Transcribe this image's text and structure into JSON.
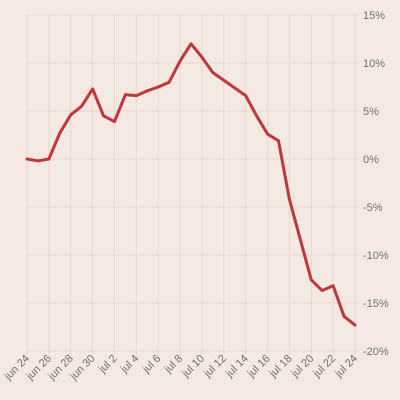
{
  "chart_data": {
    "type": "line",
    "title": "",
    "xlabel": "",
    "ylabel": "",
    "x": [
      "jun 24",
      "jun 25",
      "jun 26",
      "jun 27",
      "jun 28",
      "jun 29",
      "jun 30",
      "jul 1",
      "jul 2",
      "jul 3",
      "jul 4",
      "jul 5",
      "jul 6",
      "jul 7",
      "jul 8",
      "jul 9",
      "jul 10",
      "jul 11",
      "jul 12",
      "jul 13",
      "jul 14",
      "jul 15",
      "jul 16",
      "jul 17",
      "jul 18",
      "jul 19",
      "jul 20",
      "jul 21",
      "jul 22",
      "jul 23",
      "jul 24"
    ],
    "x_tick_labels": [
      "jun 24",
      "jun 26",
      "jun 28",
      "jun 30",
      "jul 2",
      "jul 4",
      "jul 6",
      "jul 8",
      "jul 10",
      "jul 12",
      "jul 14",
      "jul 16",
      "jul 18",
      "jul 20",
      "jul 22",
      "jul 24"
    ],
    "series": [
      {
        "color": "#c0373a",
        "values": [
          0.0,
          -0.2,
          0.0,
          2.7,
          4.6,
          5.5,
          7.3,
          4.5,
          3.9,
          6.7,
          6.6,
          7.1,
          7.5,
          8.0,
          10.2,
          12.0,
          10.6,
          9.0,
          8.2,
          7.4,
          6.6,
          4.5,
          2.6,
          1.9,
          -4.2,
          -8.4,
          -12.6,
          -13.7,
          -13.2,
          -16.4,
          -17.3
        ]
      }
    ],
    "ylim": [
      -20,
      15
    ],
    "y_ticks": [
      15,
      10,
      5,
      0,
      -5,
      -10,
      -15,
      -20
    ],
    "y_tick_labels": [
      "15%",
      "10%",
      "5%",
      "0%",
      "-5%",
      "-10%",
      "-15%",
      "-20%"
    ],
    "y_axis_position": "right",
    "grid": true,
    "legend": "none",
    "colors": {
      "background": "#f5e9e4",
      "grid": "#ead8d0",
      "line": "#c0373a",
      "text": "#6f6f6f"
    }
  }
}
